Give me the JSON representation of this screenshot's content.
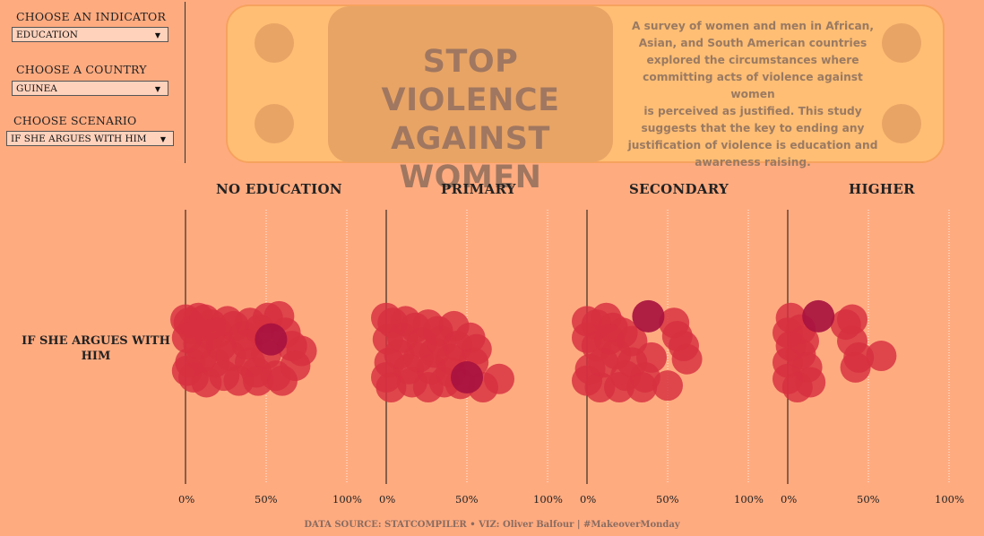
{
  "controls": [
    {
      "label": "CHOOSE AN INDICATOR",
      "value": "EDUCATION"
    },
    {
      "label": "CHOOSE A COUNTRY",
      "value": "GUINEA"
    },
    {
      "label": "CHOOSE SCENARIO",
      "value": "IF SHE ARGUES WITH HIM"
    }
  ],
  "icons": {
    "dropdown": "chevron-down-icon"
  },
  "banner": {
    "title_line1": "STOP VIOLENCE",
    "title_line2": "AGAINST WOMEN",
    "text_lines": [
      "A survey of women and men in African,",
      "Asian, and South American countries",
      "explored the circumstances where",
      "committing acts of violence against women",
      "is perceived as justified. This study",
      "suggests that the key to ending any",
      "justification of violence is education and",
      "awareness raising."
    ]
  },
  "footer": "DATA SOURCE: STATCOMPILER  •  VIZ: Oliver Balfour | #MakeoverMonday",
  "colors": {
    "background": "#ffab80",
    "bubble": "#d7303f",
    "highlight": "#a8123f"
  },
  "chart_data": {
    "type": "scatter",
    "row_label": "IF SHE ARGUES WITH HIM",
    "x_ticks": [
      "0%",
      "50%",
      "100%"
    ],
    "xlim": [
      0,
      100
    ],
    "panels": [
      {
        "title": "NO EDUCATION",
        "highlight": {
          "x": 53,
          "y": 0.58
        },
        "points": [
          {
            "x": 0,
            "y": 0.82
          },
          {
            "x": 2,
            "y": 0.78
          },
          {
            "x": 5,
            "y": 0.7
          },
          {
            "x": 8,
            "y": 0.84
          },
          {
            "x": 12,
            "y": 0.82
          },
          {
            "x": 16,
            "y": 0.76
          },
          {
            "x": 20,
            "y": 0.66
          },
          {
            "x": 26,
            "y": 0.8
          },
          {
            "x": 30,
            "y": 0.74
          },
          {
            "x": 36,
            "y": 0.62
          },
          {
            "x": 40,
            "y": 0.78
          },
          {
            "x": 46,
            "y": 0.7
          },
          {
            "x": 51,
            "y": 0.84
          },
          {
            "x": 58,
            "y": 0.86
          },
          {
            "x": 62,
            "y": 0.66
          },
          {
            "x": 66,
            "y": 0.5
          },
          {
            "x": 72,
            "y": 0.44
          },
          {
            "x": 68,
            "y": 0.26
          },
          {
            "x": 56,
            "y": 0.14
          },
          {
            "x": 60,
            "y": 0.08
          },
          {
            "x": 45,
            "y": 0.08
          },
          {
            "x": 33,
            "y": 0.08
          },
          {
            "x": 24,
            "y": 0.14
          },
          {
            "x": 13,
            "y": 0.06
          },
          {
            "x": 5,
            "y": 0.12
          },
          {
            "x": 1,
            "y": 0.2
          },
          {
            "x": 3,
            "y": 0.3
          },
          {
            "x": 10,
            "y": 0.36
          },
          {
            "x": 18,
            "y": 0.3
          },
          {
            "x": 28,
            "y": 0.38
          },
          {
            "x": 40,
            "y": 0.3
          },
          {
            "x": 50,
            "y": 0.4
          },
          {
            "x": 38,
            "y": 0.52
          },
          {
            "x": 22,
            "y": 0.5
          },
          {
            "x": 8,
            "y": 0.52
          },
          {
            "x": 1,
            "y": 0.6
          },
          {
            "x": 15,
            "y": 0.64
          },
          {
            "x": 44,
            "y": 0.18
          }
        ]
      },
      {
        "title": "PRIMARY",
        "highlight": {
          "x": 50,
          "y": 0.12
        },
        "points": [
          {
            "x": 0,
            "y": 0.84
          },
          {
            "x": 4,
            "y": 0.78
          },
          {
            "x": 12,
            "y": 0.8
          },
          {
            "x": 18,
            "y": 0.72
          },
          {
            "x": 26,
            "y": 0.76
          },
          {
            "x": 32,
            "y": 0.68
          },
          {
            "x": 42,
            "y": 0.74
          },
          {
            "x": 52,
            "y": 0.6
          },
          {
            "x": 56,
            "y": 0.46
          },
          {
            "x": 54,
            "y": 0.3
          },
          {
            "x": 70,
            "y": 0.1
          },
          {
            "x": 60,
            "y": 0.0
          },
          {
            "x": 46,
            "y": 0.04
          },
          {
            "x": 36,
            "y": 0.06
          },
          {
            "x": 26,
            "y": 0.0
          },
          {
            "x": 16,
            "y": 0.06
          },
          {
            "x": 3,
            "y": 0.0
          },
          {
            "x": 0,
            "y": 0.12
          },
          {
            "x": 2,
            "y": 0.3
          },
          {
            "x": 8,
            "y": 0.4
          },
          {
            "x": 20,
            "y": 0.36
          },
          {
            "x": 30,
            "y": 0.42
          },
          {
            "x": 40,
            "y": 0.34
          },
          {
            "x": 44,
            "y": 0.5
          },
          {
            "x": 34,
            "y": 0.56
          },
          {
            "x": 22,
            "y": 0.54
          },
          {
            "x": 10,
            "y": 0.6
          },
          {
            "x": 1,
            "y": 0.58
          },
          {
            "x": 14,
            "y": 0.22
          },
          {
            "x": 28,
            "y": 0.22
          },
          {
            "x": 40,
            "y": 0.18
          }
        ]
      },
      {
        "title": "SECONDARY",
        "highlight": {
          "x": 38,
          "y": 0.86
        },
        "points": [
          {
            "x": 0,
            "y": 0.8
          },
          {
            "x": 6,
            "y": 0.76
          },
          {
            "x": 12,
            "y": 0.84
          },
          {
            "x": 16,
            "y": 0.72
          },
          {
            "x": 22,
            "y": 0.66
          },
          {
            "x": 28,
            "y": 0.56
          },
          {
            "x": 54,
            "y": 0.78
          },
          {
            "x": 56,
            "y": 0.62
          },
          {
            "x": 60,
            "y": 0.5
          },
          {
            "x": 62,
            "y": 0.34
          },
          {
            "x": 50,
            "y": 0.02
          },
          {
            "x": 34,
            "y": 0.0
          },
          {
            "x": 20,
            "y": 0.0
          },
          {
            "x": 8,
            "y": 0.0
          },
          {
            "x": 0,
            "y": 0.08
          },
          {
            "x": 2,
            "y": 0.22
          },
          {
            "x": 10,
            "y": 0.3
          },
          {
            "x": 18,
            "y": 0.4
          },
          {
            "x": 28,
            "y": 0.3
          },
          {
            "x": 40,
            "y": 0.36
          },
          {
            "x": 36,
            "y": 0.12
          },
          {
            "x": 6,
            "y": 0.5
          },
          {
            "x": 0,
            "y": 0.6
          },
          {
            "x": 14,
            "y": 0.58
          },
          {
            "x": 24,
            "y": 0.14
          }
        ]
      },
      {
        "title": "HIGHER",
        "highlight": {
          "x": 19,
          "y": 0.86
        },
        "points": [
          {
            "x": 2,
            "y": 0.84
          },
          {
            "x": 8,
            "y": 0.7
          },
          {
            "x": 10,
            "y": 0.56
          },
          {
            "x": 8,
            "y": 0.4
          },
          {
            "x": 12,
            "y": 0.24
          },
          {
            "x": 14,
            "y": 0.06
          },
          {
            "x": 6,
            "y": 0.0
          },
          {
            "x": 0,
            "y": 0.1
          },
          {
            "x": 0,
            "y": 0.3
          },
          {
            "x": 2,
            "y": 0.5
          },
          {
            "x": 0,
            "y": 0.66
          },
          {
            "x": 36,
            "y": 0.76
          },
          {
            "x": 40,
            "y": 0.82
          },
          {
            "x": 40,
            "y": 0.56
          },
          {
            "x": 44,
            "y": 0.36
          },
          {
            "x": 42,
            "y": 0.24
          },
          {
            "x": 58,
            "y": 0.38
          }
        ]
      }
    ]
  }
}
